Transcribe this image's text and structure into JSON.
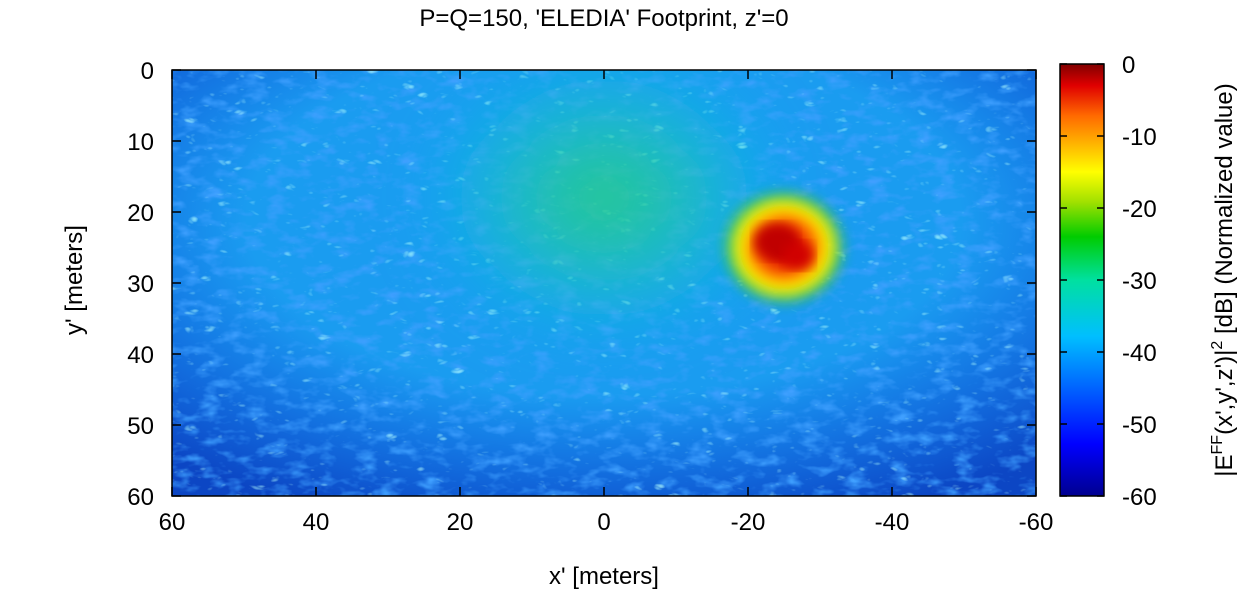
{
  "chart_data": {
    "type": "heatmap",
    "title": "P=Q=150, 'ELEDIA' Footprint, z'=0",
    "xlabel": "x' [meters]",
    "ylabel": "y' [meters]",
    "colorbar_label": {
      "main": "|E",
      "superscript1": "FF",
      "middle": "(x',y',z')|",
      "superscript2": "2",
      "tail": " [dB] (Normalized value)"
    },
    "x_range": [
      60,
      -60
    ],
    "y_range": [
      0,
      60
    ],
    "color_range": [
      -60,
      0
    ],
    "x_ticks": [
      "60",
      "40",
      "20",
      "0",
      "-20",
      "-40",
      "-60"
    ],
    "y_ticks": [
      "0",
      "10",
      "20",
      "30",
      "40",
      "50",
      "60"
    ],
    "colorbar_ticks": [
      "0",
      "-10",
      "-20",
      "-30",
      "-40",
      "-50",
      "-60"
    ],
    "colormap": [
      "#00008f",
      "#0000ff",
      "#00ffff",
      "#00cc00",
      "#ffff00",
      "#ff0000",
      "#800000"
    ],
    "features": [
      {
        "label": "main beam footprint",
        "x_center": -25,
        "y_center": 25,
        "peak_db": 0
      },
      {
        "label": "diffuse region",
        "x_center": 0,
        "y_center": 18,
        "peak_db": -28
      }
    ]
  }
}
